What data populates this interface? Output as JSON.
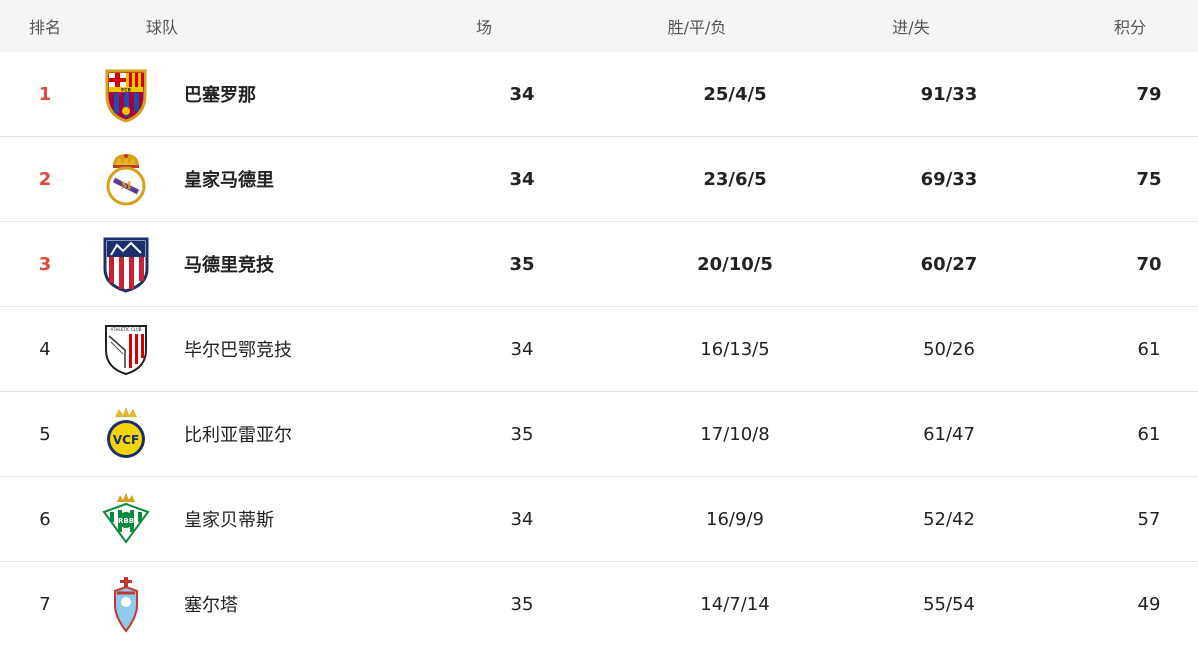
{
  "headers": {
    "rank": "排名",
    "team": "球队",
    "played": "场",
    "wdl": "胜/平/负",
    "goals": "进/失",
    "points": "积分"
  },
  "colors": {
    "top_rank": "#e0473d",
    "header_bg": "#f4f5f7"
  },
  "rows": [
    {
      "rank": "1",
      "team": "巴塞罗那",
      "played": "34",
      "wdl": "25/4/5",
      "goals": "91/33",
      "points": "79",
      "icon": "barcelona-crest-icon"
    },
    {
      "rank": "2",
      "team": "皇家马德里",
      "played": "34",
      "wdl": "23/6/5",
      "goals": "69/33",
      "points": "75",
      "icon": "real-madrid-crest-icon"
    },
    {
      "rank": "3",
      "team": "马德里竞技",
      "played": "35",
      "wdl": "20/10/5",
      "goals": "60/27",
      "points": "70",
      "icon": "atletico-madrid-crest-icon"
    },
    {
      "rank": "4",
      "team": "毕尔巴鄂竞技",
      "played": "34",
      "wdl": "16/13/5",
      "goals": "50/26",
      "points": "61",
      "icon": "athletic-club-crest-icon"
    },
    {
      "rank": "5",
      "team": "比利亚雷亚尔",
      "played": "35",
      "wdl": "17/10/8",
      "goals": "61/47",
      "points": "61",
      "icon": "villarreal-crest-icon"
    },
    {
      "rank": "6",
      "team": "皇家贝蒂斯",
      "played": "34",
      "wdl": "16/9/9",
      "goals": "52/42",
      "points": "57",
      "icon": "real-betis-crest-icon"
    },
    {
      "rank": "7",
      "team": "塞尔塔",
      "played": "35",
      "wdl": "14/7/14",
      "goals": "55/54",
      "points": "49",
      "icon": "celta-vigo-crest-icon"
    }
  ],
  "crest_text": {
    "fcb": "FCB",
    "athletic": "ATHLETIC CLUB",
    "villarreal": "VCF",
    "betis": "RBB"
  }
}
